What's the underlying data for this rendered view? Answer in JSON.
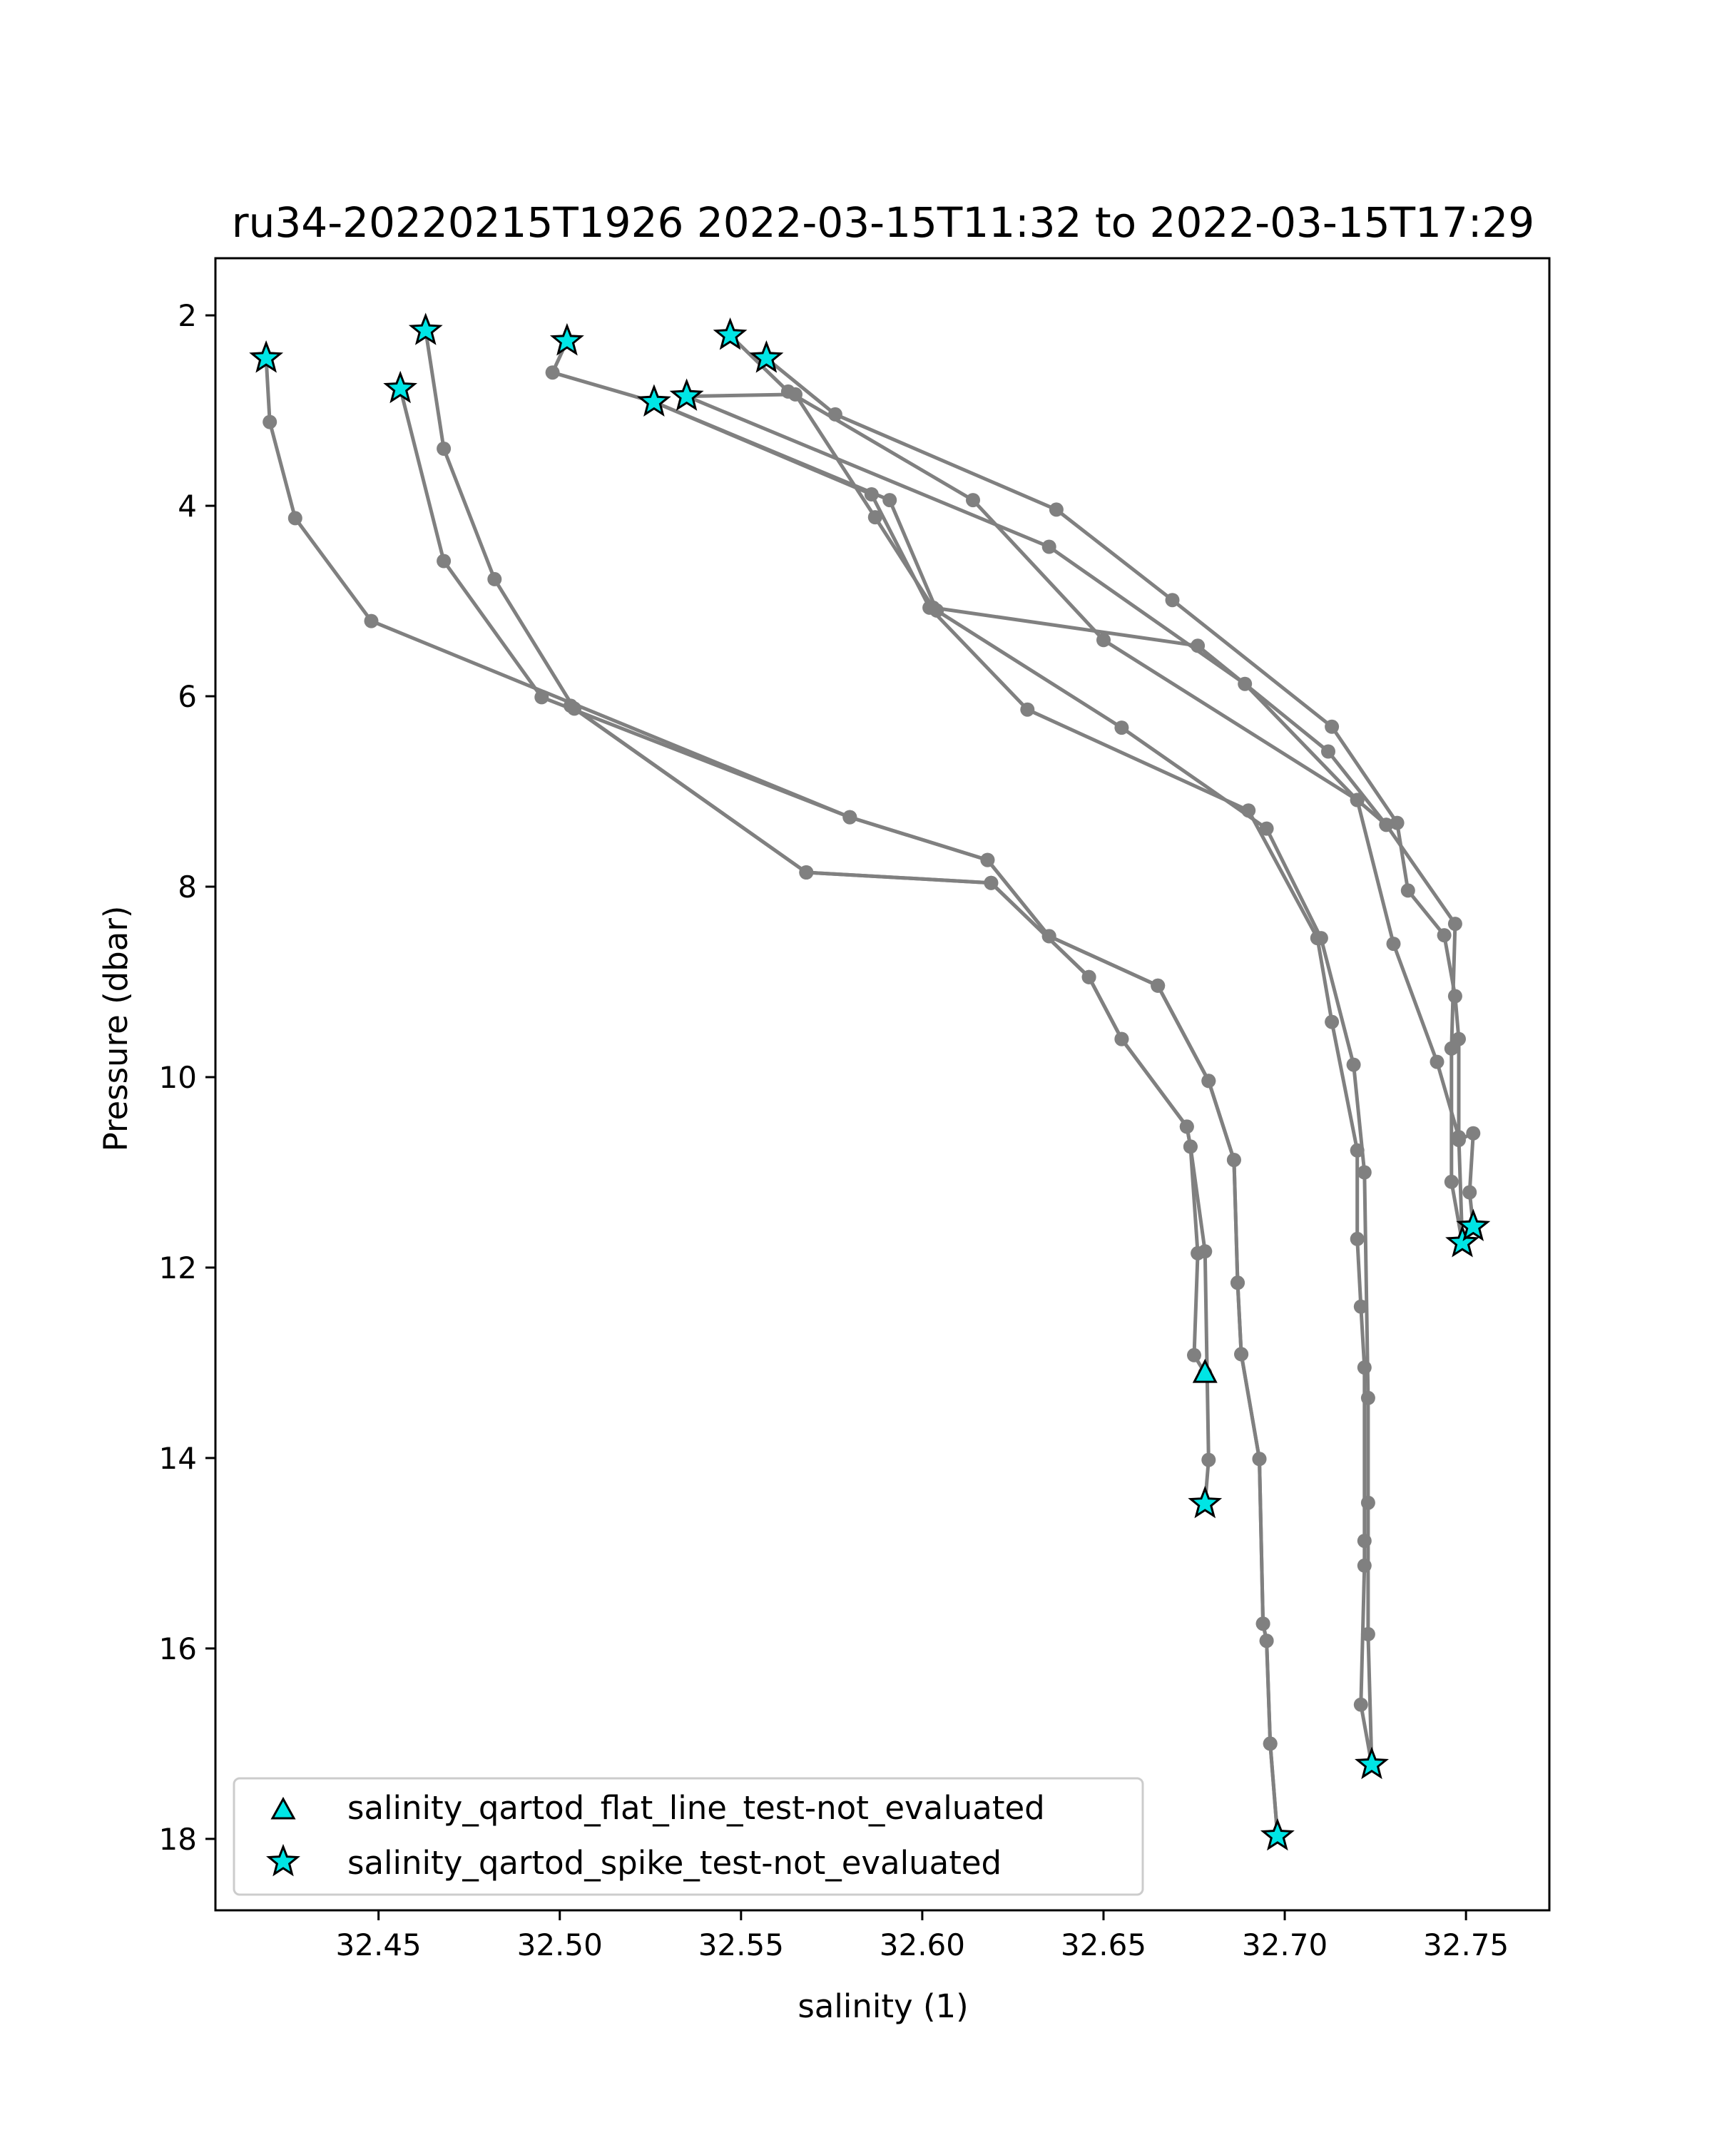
{
  "chart_data": {
    "type": "line",
    "title": "ru34-20220215T1926 2022-03-15T11:32 to 2022-03-15T17:29",
    "xlabel": "salinity (1)",
    "ylabel": "Pressure (dbar)",
    "xlim": [
      32.405,
      32.773
    ],
    "ylim": [
      18.75,
      1.4
    ],
    "y_inverted": true,
    "grid": false,
    "x_ticks": [
      32.45,
      32.5,
      32.55,
      32.6,
      32.65,
      32.7,
      32.75
    ],
    "x_tick_labels": [
      "32.45",
      "32.50",
      "32.55",
      "32.60",
      "32.65",
      "32.70",
      "32.75"
    ],
    "y_ticks": [
      2,
      4,
      6,
      8,
      10,
      12,
      14,
      16,
      18
    ],
    "y_tick_labels": [
      "2",
      "4",
      "6",
      "8",
      "10",
      "12",
      "14",
      "16",
      "18"
    ],
    "line_color": "#808080",
    "marker_color": "#00e5e5",
    "marker_edge_color": "#000000",
    "legend_position": "lower-left",
    "legend": [
      {
        "label": "salinity_qartod_flat_line_test-not_evaluated",
        "marker": "triangle"
      },
      {
        "label": "salinity_qartod_spike_test-not_evaluated",
        "marker": "star"
      }
    ],
    "series": [
      {
        "points": [
          [
            32.419,
            2.45
          ],
          [
            32.42,
            3.12
          ],
          [
            32.427,
            4.13
          ],
          [
            32.448,
            5.21
          ],
          [
            32.58,
            7.27
          ],
          [
            32.618,
            7.72
          ],
          [
            32.635,
            8.52
          ],
          [
            32.665,
            9.04
          ],
          [
            32.679,
            10.04
          ],
          [
            32.686,
            10.87
          ],
          [
            32.687,
            12.16
          ],
          [
            32.688,
            12.91
          ],
          [
            32.693,
            14.01
          ],
          [
            32.694,
            15.74
          ],
          [
            32.695,
            15.92
          ],
          [
            32.696,
            17.0
          ],
          [
            32.698,
            17.97
          ]
        ]
      },
      {
        "points": [
          [
            32.456,
            2.77
          ],
          [
            32.468,
            4.58
          ],
          [
            32.495,
            6.01
          ],
          [
            32.58,
            7.27
          ],
          [
            32.618,
            7.72
          ],
          [
            32.635,
            8.52
          ],
          [
            32.665,
            9.04
          ],
          [
            32.679,
            10.04
          ],
          [
            32.686,
            10.87
          ],
          [
            32.687,
            12.16
          ],
          [
            32.688,
            12.91
          ],
          [
            32.693,
            14.01
          ],
          [
            32.694,
            15.74
          ],
          [
            32.695,
            15.92
          ],
          [
            32.696,
            17.0
          ],
          [
            32.698,
            17.97
          ]
        ]
      },
      {
        "points": [
          [
            32.463,
            2.16
          ],
          [
            32.468,
            3.4
          ],
          [
            32.482,
            4.77
          ],
          [
            32.504,
            6.13
          ],
          [
            32.568,
            7.85
          ],
          [
            32.619,
            7.96
          ],
          [
            32.646,
            8.95
          ],
          [
            32.655,
            9.6
          ],
          [
            32.673,
            10.52
          ],
          [
            32.674,
            10.73
          ],
          [
            32.676,
            11.85
          ],
          [
            32.675,
            12.92
          ],
          [
            32.678,
            13.11
          ]
        ]
      },
      {
        "points": [
          [
            32.503,
            6.1
          ],
          [
            32.568,
            7.85
          ],
          [
            32.619,
            7.96
          ],
          [
            32.646,
            8.95
          ],
          [
            32.655,
            9.6
          ],
          [
            32.673,
            10.52
          ],
          [
            32.674,
            10.73
          ],
          [
            32.678,
            11.83
          ],
          [
            32.679,
            14.02
          ],
          [
            32.678,
            14.48
          ]
        ]
      },
      {
        "points": [
          [
            32.502,
            2.27
          ],
          [
            32.498,
            2.6
          ],
          [
            32.526,
            2.91
          ],
          [
            32.586,
            3.88
          ],
          [
            32.602,
            5.07
          ],
          [
            32.629,
            6.14
          ],
          [
            32.69,
            7.2
          ],
          [
            32.709,
            8.54
          ],
          [
            32.713,
            9.42
          ],
          [
            32.72,
            10.77
          ],
          [
            32.72,
            11.7
          ],
          [
            32.721,
            12.41
          ],
          [
            32.722,
            13.05
          ],
          [
            32.722,
            14.87
          ],
          [
            32.722,
            15.13
          ],
          [
            32.721,
            16.59
          ],
          [
            32.724,
            17.22
          ]
        ]
      },
      {
        "points": [
          [
            32.526,
            2.91
          ],
          [
            32.591,
            3.94
          ],
          [
            32.604,
            5.1
          ],
          [
            32.655,
            6.33
          ],
          [
            32.695,
            7.39
          ],
          [
            32.71,
            8.54
          ],
          [
            32.719,
            9.87
          ],
          [
            32.722,
            11.0
          ],
          [
            32.723,
            13.37
          ],
          [
            32.723,
            14.47
          ],
          [
            32.723,
            15.85
          ],
          [
            32.724,
            17.22
          ]
        ]
      },
      {
        "points": [
          [
            32.547,
            2.21
          ],
          [
            32.563,
            2.8
          ],
          [
            32.614,
            3.94
          ],
          [
            32.65,
            5.41
          ],
          [
            32.72,
            7.09
          ],
          [
            32.73,
            8.6
          ],
          [
            32.742,
            9.84
          ],
          [
            32.748,
            10.63
          ],
          [
            32.749,
            11.74
          ]
        ]
      },
      {
        "points": [
          [
            32.557,
            2.45
          ],
          [
            32.576,
            3.04
          ],
          [
            32.637,
            4.04
          ],
          [
            32.669,
            4.99
          ],
          [
            32.713,
            6.32
          ],
          [
            32.731,
            7.33
          ],
          [
            32.734,
            8.04
          ],
          [
            32.744,
            8.51
          ],
          [
            32.747,
            9.15
          ],
          [
            32.748,
            9.6
          ],
          [
            32.748,
            10.66
          ],
          [
            32.752,
            10.59
          ],
          [
            32.751,
            11.21
          ],
          [
            32.752,
            11.57
          ]
        ]
      },
      {
        "points": [
          [
            32.535,
            2.85
          ],
          [
            32.635,
            4.43
          ],
          [
            32.689,
            5.87
          ],
          [
            32.72,
            7.09
          ],
          [
            32.728,
            7.35
          ],
          [
            32.747,
            8.39
          ],
          [
            32.746,
            9.7
          ],
          [
            32.746,
            11.1
          ],
          [
            32.749,
            11.74
          ]
        ]
      },
      {
        "points": [
          [
            32.535,
            2.85
          ],
          [
            32.565,
            2.83
          ],
          [
            32.587,
            4.12
          ],
          [
            32.603,
            5.07
          ],
          [
            32.676,
            5.47
          ],
          [
            32.712,
            6.58
          ],
          [
            32.728,
            7.35
          ]
        ]
      }
    ],
    "flat_line_flags": [
      [
        32.678,
        13.11
      ]
    ],
    "spike_flags": [
      [
        32.419,
        2.45
      ],
      [
        32.456,
        2.77
      ],
      [
        32.463,
        2.16
      ],
      [
        32.502,
        2.27
      ],
      [
        32.526,
        2.91
      ],
      [
        32.535,
        2.85
      ],
      [
        32.547,
        2.21
      ],
      [
        32.557,
        2.45
      ],
      [
        32.678,
        14.48
      ],
      [
        32.698,
        17.97
      ],
      [
        32.724,
        17.22
      ],
      [
        32.749,
        11.74
      ],
      [
        32.752,
        11.57
      ]
    ]
  }
}
